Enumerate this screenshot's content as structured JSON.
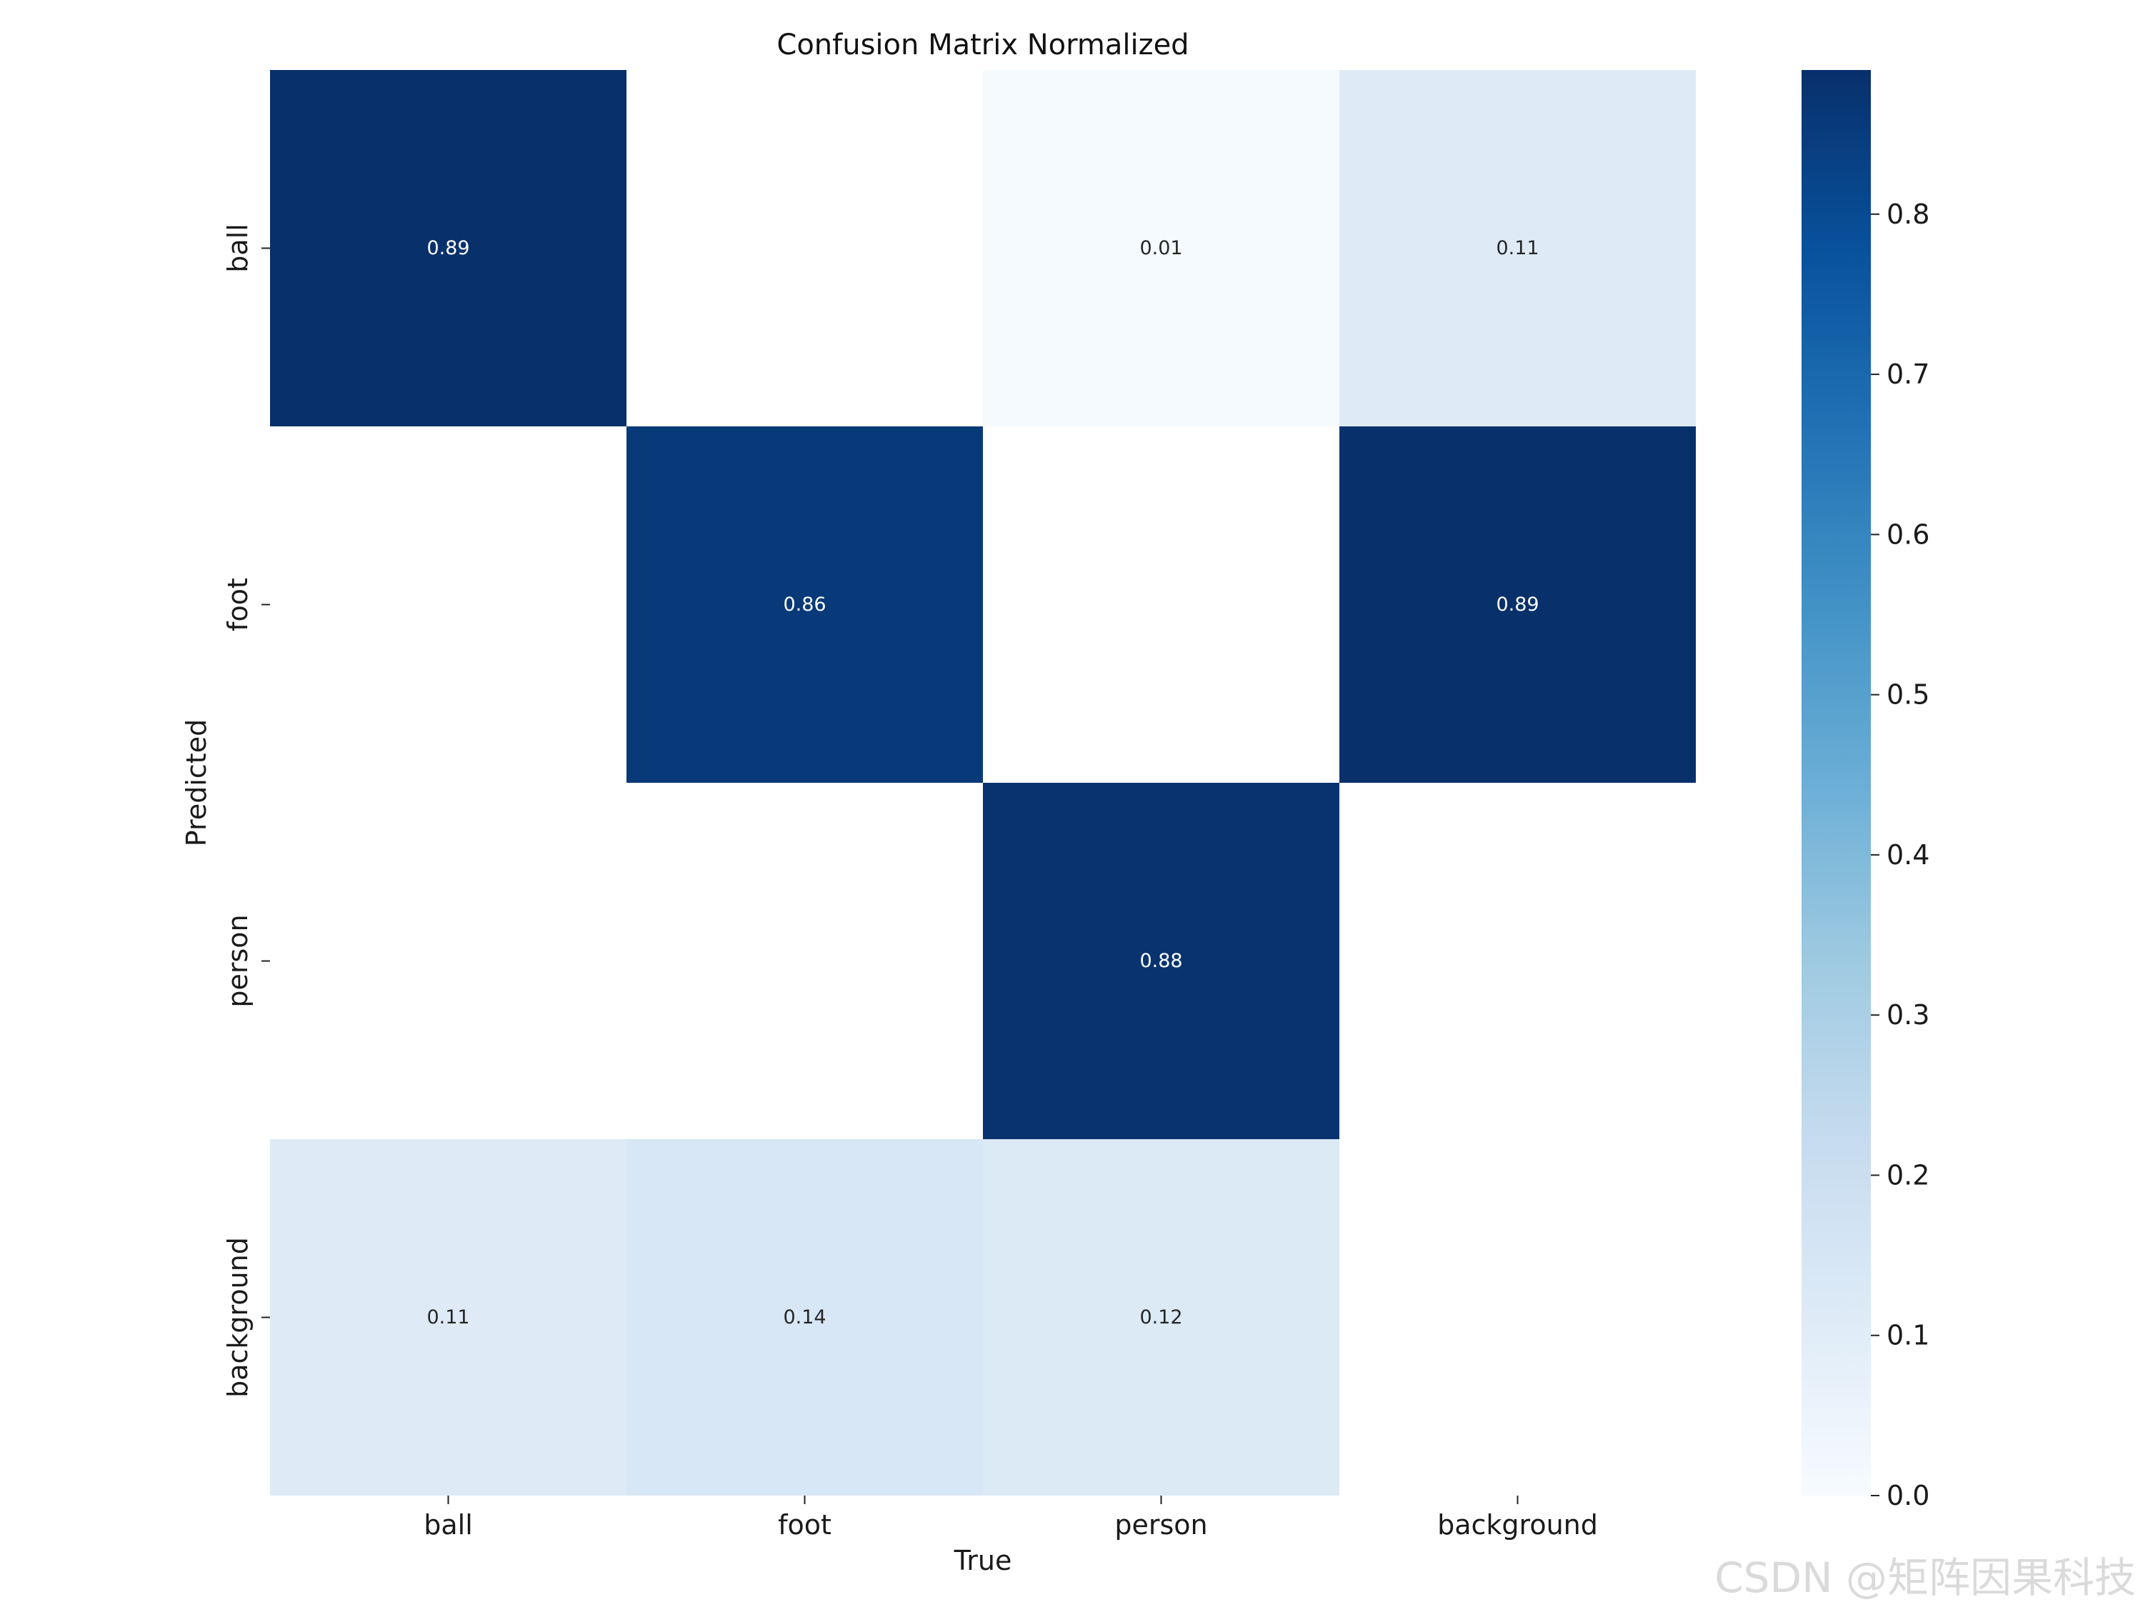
{
  "chart_data": {
    "type": "heatmap",
    "title": "Confusion Matrix Normalized",
    "xlabel": "True",
    "ylabel": "Predicted",
    "x_categories": [
      "ball",
      "foot",
      "person",
      "background"
    ],
    "y_categories": [
      "ball",
      "foot",
      "person",
      "background"
    ],
    "values": [
      [
        0.89,
        null,
        0.01,
        0.11
      ],
      [
        null,
        0.86,
        null,
        0.89
      ],
      [
        null,
        null,
        0.88,
        null
      ],
      [
        0.11,
        0.14,
        0.12,
        null
      ]
    ],
    "colormap": "Blues",
    "colorbar": {
      "range": [
        0.0,
        0.89
      ],
      "ticks": [
        "0.0",
        "0.1",
        "0.2",
        "0.3",
        "0.4",
        "0.5",
        "0.6",
        "0.7",
        "0.8"
      ]
    }
  },
  "watermark": "CSDN @矩阵因果科技"
}
